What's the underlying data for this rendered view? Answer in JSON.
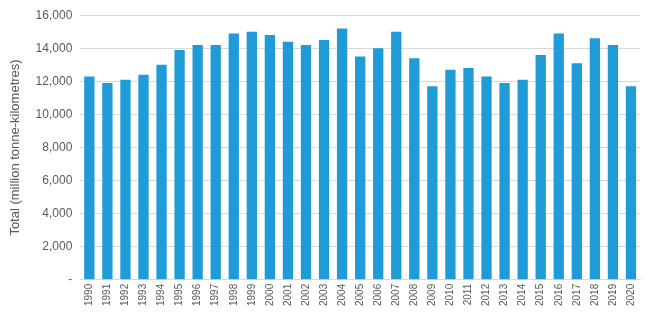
{
  "chart_data": {
    "type": "bar",
    "y_label": "Total (million tonne-kilometres)",
    "categories": [
      "1990",
      "1991",
      "1992",
      "1993",
      "1994",
      "1995",
      "1996",
      "1997",
      "1998",
      "1999",
      "2000",
      "2001",
      "2002",
      "2003",
      "2004",
      "2005",
      "2006",
      "2007",
      "2008",
      "2009",
      "2010",
      "2011",
      "2012",
      "2013",
      "2014",
      "2015",
      "2016",
      "2017",
      "2018",
      "2019",
      "2020"
    ],
    "values": [
      12300,
      11900,
      12100,
      12400,
      13000,
      13900,
      14200,
      14200,
      14900,
      15000,
      14800,
      14400,
      14200,
      14500,
      15200,
      13500,
      14000,
      15000,
      13400,
      11700,
      12700,
      12800,
      12300,
      11900,
      12100,
      13600,
      14900,
      13100,
      14600,
      14200,
      11700
    ],
    "color": "#1f9bd7",
    "ylim": [
      0,
      16000
    ],
    "yticks": [
      {
        "value": 0,
        "label": "-"
      },
      {
        "value": 2000,
        "label": "2,000"
      },
      {
        "value": 4000,
        "label": "4,000"
      },
      {
        "value": 6000,
        "label": "6,000"
      },
      {
        "value": 8000,
        "label": "8,000"
      },
      {
        "value": 10000,
        "label": "10,000"
      },
      {
        "value": 12000,
        "label": "12,000"
      },
      {
        "value": 14000,
        "label": "14,000"
      },
      {
        "value": 16000,
        "label": "16,000"
      }
    ],
    "grid": true
  }
}
